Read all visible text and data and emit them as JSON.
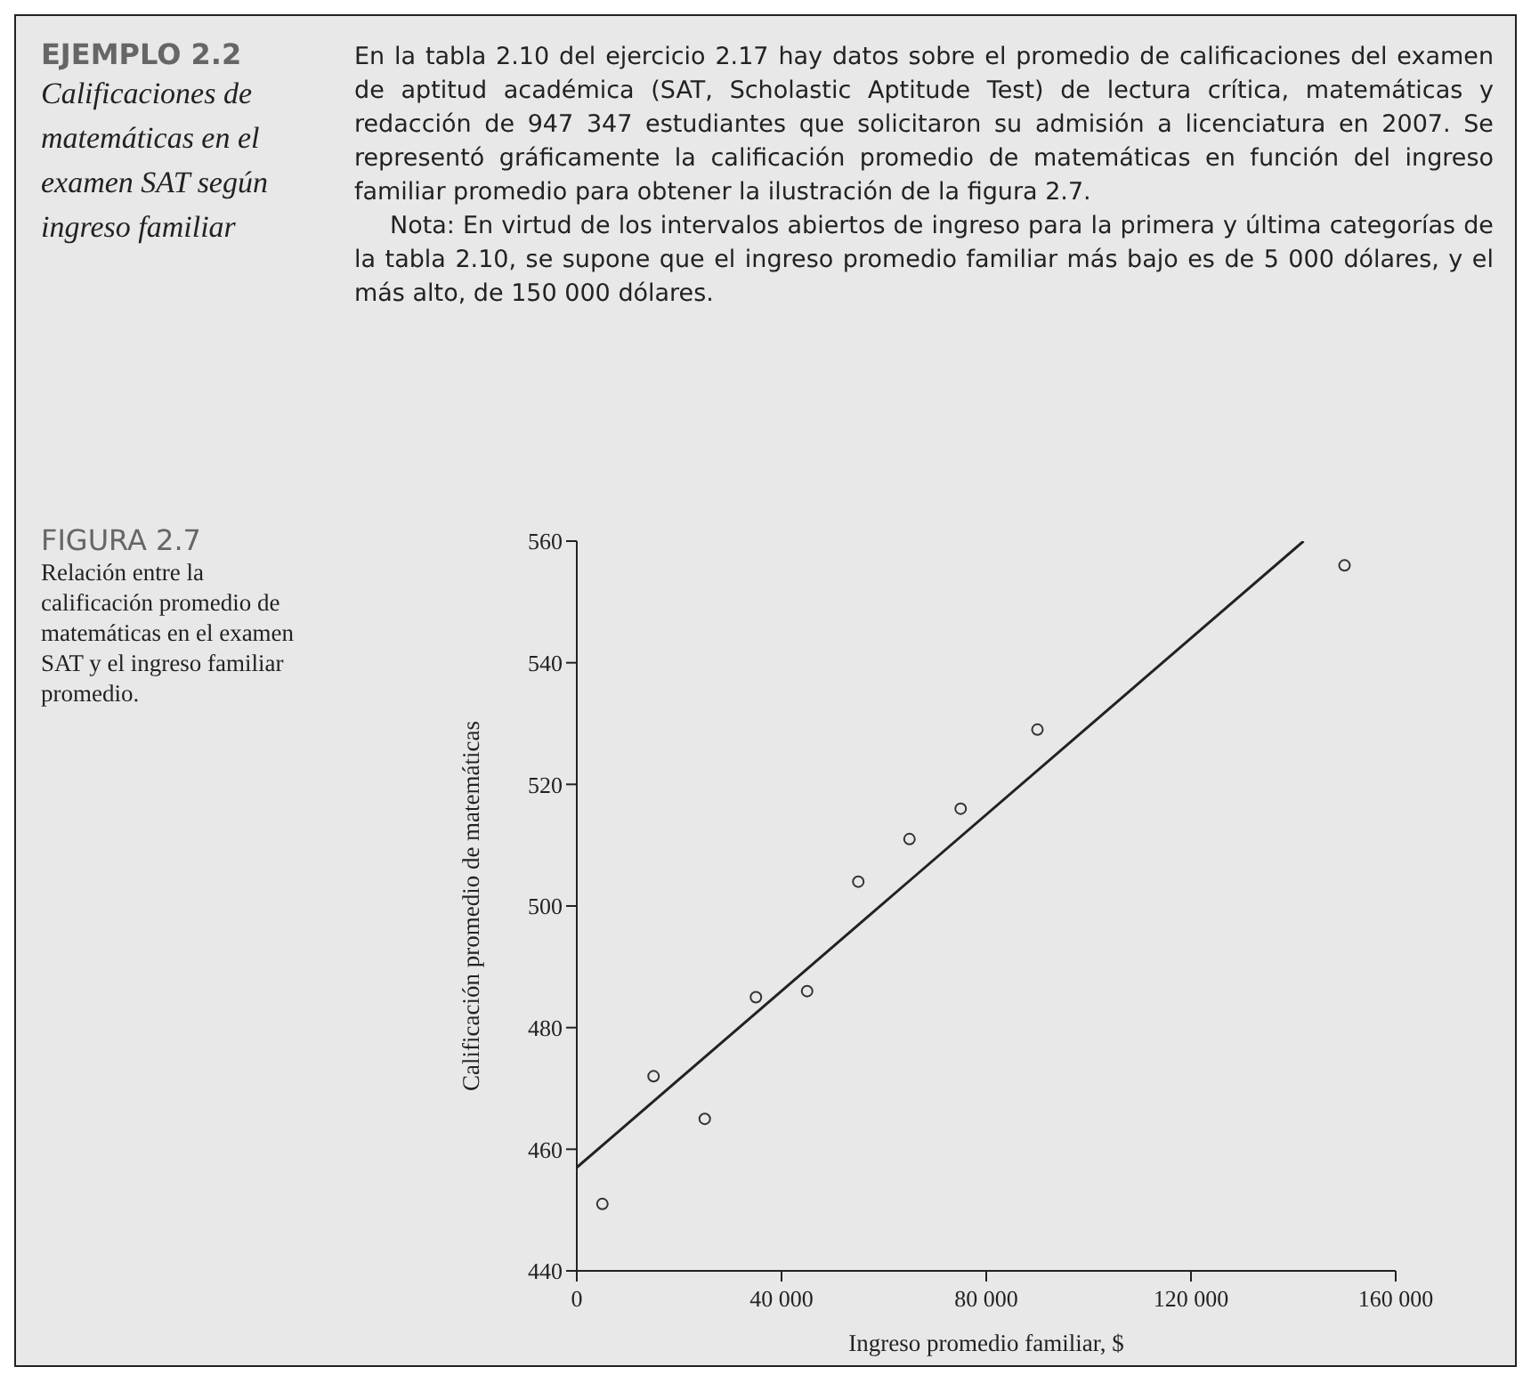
{
  "chart_data": {
    "type": "scatter",
    "title": "EJEMPLO 2.2",
    "subtitle": "Calificaciones de matemáticas en el examen SAT según ingreso familiar",
    "annotations": [
      "En la tabla 2.10 del ejercicio 2.17 hay datos sobre el promedio de calificaciones del examen de aptitud académica (SAT, Scholastic Aptitude Test) de lectura crítica, matemáticas y redacción de 947 347 estudiantes que solicitaron su admisión a licenciatura en 2007. Se representó gráficamente la calificación promedio de matemáticas en función del ingreso familiar promedio para obtener la ilustración de la figura 2.7.",
      "Nota: En virtud de los intervalos abiertos de ingreso para la primera y última categorías de la tabla 2.10, se supone que el ingreso promedio familiar más bajo es de 5 000 dólares, y el más alto, de 150 000 dólares.",
      "FIGURA 2.7",
      "Relación entre la calificación promedio de matemáticas en el examen SAT y el ingreso familiar promedio."
    ],
    "xlabel": "Ingreso promedio familiar, $",
    "ylabel": "Calificación promedio de matemáticas",
    "xlim": [
      0,
      160000
    ],
    "xticks": [
      0,
      {
        "value": 40000,
        "label": "40 000"
      },
      {
        "value": 80000,
        "label": "80 000"
      },
      {
        "value": 120000,
        "label": "120 000"
      },
      {
        "value": 160000,
        "label": "160 000"
      }
    ],
    "ylim": [
      440,
      560
    ],
    "yticks": [
      440,
      460,
      480,
      500,
      520,
      540,
      560
    ],
    "series": [
      {
        "marker": "circle",
        "color": "#333333",
        "x": [
          5000,
          15000,
          25000,
          35000,
          45000,
          55000,
          65000,
          75000,
          90000,
          150000
        ],
        "values": [
          451,
          472,
          465,
          485,
          486,
          504,
          511,
          516,
          529,
          556
        ]
      },
      {
        "type": "line",
        "marker": "none",
        "color": "#222222",
        "x": [
          0,
          142000
        ],
        "values": [
          457,
          560
        ]
      }
    ]
  }
}
